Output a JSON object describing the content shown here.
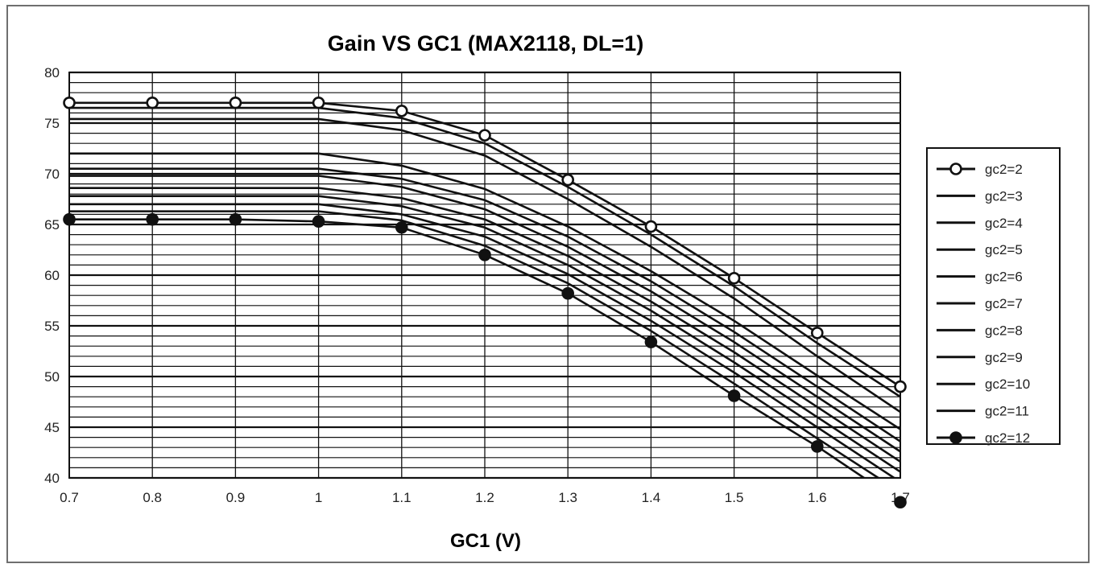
{
  "chart_data": {
    "type": "line",
    "title": "Gain VS GC1 (MAX2118, DL=1)",
    "xlabel": "GC1 (V)",
    "ylabel": "",
    "x": [
      0.7,
      0.8,
      0.9,
      1.0,
      1.1,
      1.2,
      1.3,
      1.4,
      1.5,
      1.6,
      1.7
    ],
    "x_tick_labels": [
      "0.7",
      "0.8",
      "0.9",
      "1",
      "1.1",
      "1.2",
      "1.3",
      "1.4",
      "1.5",
      "1.6",
      "1.7"
    ],
    "xlim": [
      0.7,
      1.7
    ],
    "ylim": [
      40,
      80
    ],
    "y_ticks": [
      40,
      45,
      50,
      55,
      60,
      65,
      70,
      75,
      80
    ],
    "y_tick_labels": [
      "40",
      "45",
      "50",
      "55",
      "60",
      "65",
      "70",
      "75",
      "80"
    ],
    "grid": true,
    "minor_grid_step": 1,
    "legend_position": "right",
    "series": [
      {
        "name": "gc2=2",
        "marker": "open-circle",
        "values": [
          77.0,
          77.0,
          77.0,
          77.0,
          76.2,
          73.8,
          69.4,
          64.8,
          59.7,
          54.3,
          49.0
        ]
      },
      {
        "name": "gc2=3",
        "marker": "none",
        "values": [
          76.5,
          76.5,
          76.5,
          76.5,
          75.5,
          73.0,
          68.7,
          64.0,
          58.9,
          53.3,
          48.0
        ]
      },
      {
        "name": "gc2=4",
        "marker": "none",
        "values": [
          75.4,
          75.4,
          75.4,
          75.4,
          74.3,
          71.8,
          67.5,
          62.8,
          57.7,
          52.0,
          46.5
        ]
      },
      {
        "name": "gc2=5",
        "marker": "none",
        "values": [
          72.0,
          72.0,
          72.0,
          72.0,
          70.8,
          68.5,
          64.8,
          60.4,
          55.5,
          50.1,
          44.8
        ]
      },
      {
        "name": "gc2=6",
        "marker": "none",
        "values": [
          70.5,
          70.5,
          70.5,
          70.5,
          69.5,
          67.4,
          63.8,
          59.4,
          54.4,
          49.0,
          43.6
        ]
      },
      {
        "name": "gc2=7",
        "marker": "none",
        "values": [
          69.8,
          69.8,
          69.8,
          69.8,
          68.7,
          66.5,
          62.8,
          58.4,
          53.4,
          48.0,
          42.6
        ]
      },
      {
        "name": "gc2=8",
        "marker": "none",
        "values": [
          68.6,
          68.6,
          68.6,
          68.6,
          67.6,
          65.5,
          61.9,
          57.4,
          52.4,
          47.0,
          41.6
        ]
      },
      {
        "name": "gc2=9",
        "marker": "none",
        "values": [
          67.8,
          67.8,
          67.8,
          67.8,
          66.8,
          64.7,
          61.0,
          56.5,
          51.4,
          46.0,
          40.6
        ]
      },
      {
        "name": "gc2=10",
        "marker": "none",
        "values": [
          67.0,
          67.0,
          67.0,
          67.0,
          66.0,
          63.8,
          60.1,
          55.5,
          50.4,
          45.0,
          39.6
        ]
      },
      {
        "name": "gc2=11",
        "marker": "none",
        "values": [
          66.3,
          66.3,
          66.3,
          66.3,
          65.4,
          62.9,
          59.2,
          54.5,
          49.3,
          43.9,
          38.6
        ]
      },
      {
        "name": "gc2=12",
        "marker": "filled-circle",
        "values": [
          65.5,
          65.5,
          65.5,
          65.3,
          64.7,
          62.0,
          58.2,
          53.4,
          48.1,
          43.1,
          37.6
        ]
      }
    ]
  }
}
